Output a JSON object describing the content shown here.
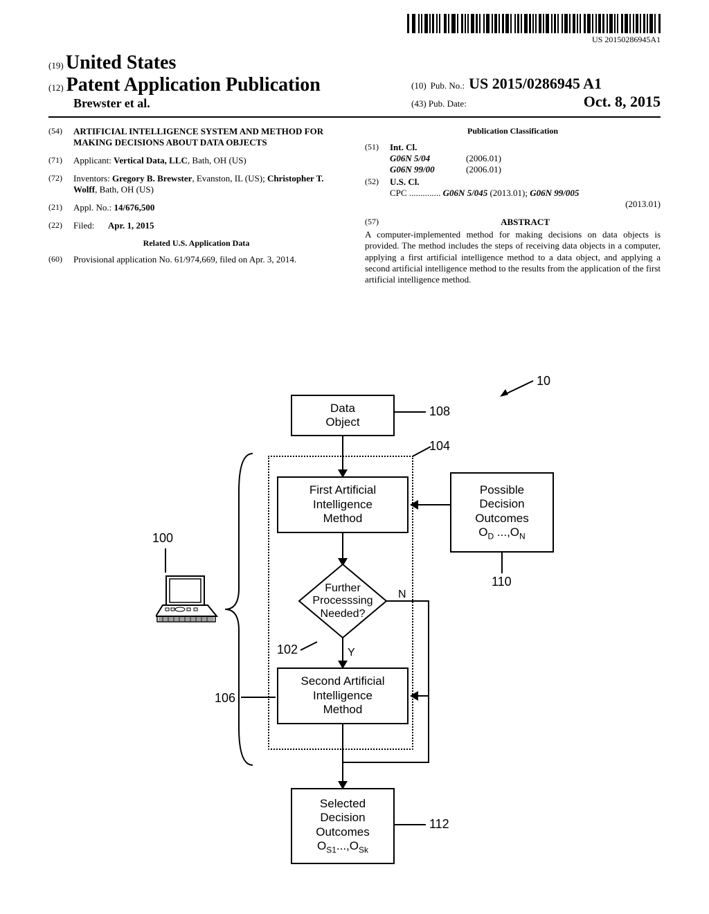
{
  "barcode_number": "US 20150286945A1",
  "header": {
    "code19": "(19)",
    "country": "United States",
    "code12": "(12)",
    "pub_type": "Patent Application Publication",
    "authors": "Brewster et al.",
    "code10": "(10)",
    "pubno_label": "Pub. No.:",
    "pubno_value": "US 2015/0286945 A1",
    "code43": "(43)",
    "pubdate_label": "Pub. Date:",
    "pubdate_value": "Oct. 8, 2015"
  },
  "left_col": {
    "f54": {
      "code": "(54)",
      "text": "ARTIFICIAL INTELLIGENCE SYSTEM AND METHOD FOR MAKING DECISIONS ABOUT DATA OBJECTS"
    },
    "f71": {
      "code": "(71)",
      "label": "Applicant:",
      "value": "Vertical Data, LLC, Bath, OH (US)"
    },
    "f72": {
      "code": "(72)",
      "label": "Inventors:",
      "value": "Gregory B. Brewster, Evanston, IL (US); Christopher T. Wolff, Bath, OH (US)"
    },
    "f21": {
      "code": "(21)",
      "label": "Appl. No.:",
      "value": "14/676,500"
    },
    "f22": {
      "code": "(22)",
      "label": "Filed:",
      "value": "Apr. 1, 2015"
    },
    "related_header": "Related U.S. Application Data",
    "f60": {
      "code": "(60)",
      "value": "Provisional application No. 61/974,669, filed on Apr. 3, 2014."
    }
  },
  "right_col": {
    "pubclass_header": "Publication Classification",
    "f51": {
      "code": "(51)",
      "label": "Int. Cl.",
      "rows": [
        {
          "cls": "G06N 5/04",
          "ver": "(2006.01)"
        },
        {
          "cls": "G06N 99/00",
          "ver": "(2006.01)"
        }
      ]
    },
    "f52": {
      "code": "(52)",
      "label": "U.S. Cl.",
      "cpc_lead": "CPC ..............",
      "cpc_value": "G06N 5/045 (2013.01); G06N 99/005 (2013.01)"
    },
    "f57": {
      "code": "(57)",
      "label": "ABSTRACT"
    },
    "abstract": "A computer-implemented method for making decisions on data objects is provided. The method includes the steps of receiving data objects in a computer, applying a first artificial intelligence method to a data object, and applying a second artificial intelligence method to the results from the application of the first artificial intelligence method."
  },
  "figure": {
    "ref10": "10",
    "ref100": "100",
    "ref102": "102",
    "ref104": "104",
    "ref106": "106",
    "ref108": "108",
    "ref110": "110",
    "ref112": "112",
    "box_data": "Data\nObject",
    "box_first": "First Artificial\nIntelligence\nMethod",
    "diamond": "Further\nProcesssing\nNeeded?",
    "box_second": "Second Artificial\nIntelligence\nMethod",
    "box_outcomes": "Possible\nDecision\nOutcomes",
    "outcomes_sub": "O_D ...,O_N",
    "box_selected": "Selected\nDecision\nOutcomes",
    "selected_sub": "O_S1...,O_Sk",
    "N": "N",
    "Y": "Y",
    "colors": {
      "line": "#000000",
      "bg": "#ffffff"
    }
  }
}
